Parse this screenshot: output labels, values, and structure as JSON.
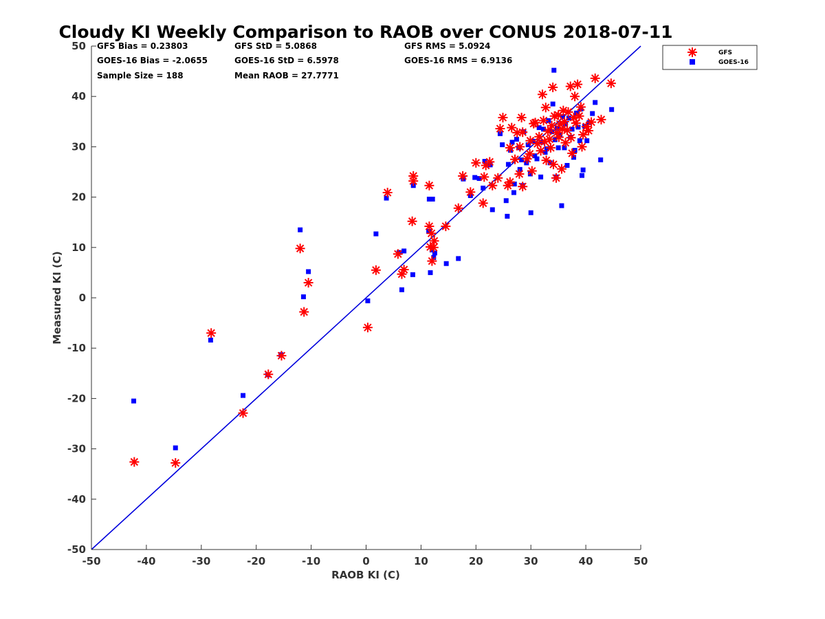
{
  "chart_data": {
    "type": "scatter",
    "title": "Cloudy KI Weekly Comparison to RAOB over CONUS 2018-07-11",
    "xlabel": "RAOB KI (C)",
    "ylabel": "Measured KI (C)",
    "xlim": [
      -50,
      50
    ],
    "ylim": [
      -50,
      50
    ],
    "xticks": [
      "-50",
      "-40",
      "-30",
      "-20",
      "-10",
      "0",
      "10",
      "20",
      "30",
      "40",
      "50"
    ],
    "yticks": [
      "-50",
      "-40",
      "-30",
      "-20",
      "-10",
      "0",
      "10",
      "20",
      "30",
      "40",
      "50"
    ],
    "reference_line": {
      "type": "one-to-one",
      "color": "#0000dd"
    },
    "stats": {
      "gfs_bias": "GFS Bias = 0.23803",
      "gfs_std": "GFS StD = 5.0868",
      "gfs_rms": "GFS RMS = 5.0924",
      "goes_bias": "GOES-16 Bias = -2.0655",
      "goes_std": "GOES-16 StD = 6.5978",
      "goes_rms": "GOES-16 RMS = 6.9136",
      "sample_size": "Sample Size = 188",
      "mean_raob": "Mean RAOB = 27.7771"
    },
    "legend": {
      "position": "top-right outside",
      "entries": [
        "GFS",
        "GOES-16"
      ]
    },
    "series": [
      {
        "name": "GFS",
        "marker": "asterisk",
        "color": "#ff0000",
        "points": [
          [
            -42.2,
            -32.6
          ],
          [
            -34.7,
            -32.8
          ],
          [
            -28.2,
            -7.0
          ],
          [
            -22.4,
            -22.9
          ],
          [
            -17.8,
            -15.2
          ],
          [
            -15.4,
            -11.5
          ],
          [
            -12.0,
            9.8
          ],
          [
            -11.3,
            -2.8
          ],
          [
            -10.5,
            3.0
          ],
          [
            0.3,
            -5.9
          ],
          [
            1.8,
            5.5
          ],
          [
            3.9,
            20.9
          ],
          [
            5.8,
            8.7
          ],
          [
            6.5,
            4.7
          ],
          [
            6.9,
            5.6
          ],
          [
            8.4,
            15.2
          ],
          [
            8.6,
            24.2
          ],
          [
            8.6,
            23.2
          ],
          [
            11.5,
            22.3
          ],
          [
            11.5,
            14.2
          ],
          [
            11.7,
            10.1
          ],
          [
            11.9,
            12.8
          ],
          [
            12.0,
            7.3
          ],
          [
            12.3,
            10.0
          ],
          [
            12.4,
            11.3
          ],
          [
            14.5,
            14.2
          ],
          [
            16.8,
            17.8
          ],
          [
            17.6,
            24.2
          ],
          [
            19.0,
            21.0
          ],
          [
            20.0,
            26.8
          ],
          [
            21.3,
            18.8
          ],
          [
            21.5,
            24.0
          ],
          [
            21.8,
            26.3
          ],
          [
            22.5,
            27.0
          ],
          [
            23.0,
            22.3
          ],
          [
            24.0,
            23.8
          ],
          [
            24.4,
            33.6
          ],
          [
            24.9,
            35.8
          ],
          [
            25.8,
            22.3
          ],
          [
            26.2,
            23.0
          ],
          [
            26.2,
            29.8
          ],
          [
            26.5,
            33.8
          ],
          [
            27.1,
            27.5
          ],
          [
            27.5,
            32.8
          ],
          [
            27.9,
            24.6
          ],
          [
            28.0,
            30.0
          ],
          [
            28.3,
            35.8
          ],
          [
            28.5,
            22.1
          ],
          [
            28.5,
            32.9
          ],
          [
            29.3,
            27.6
          ],
          [
            29.8,
            28.6
          ],
          [
            29.9,
            31.2
          ],
          [
            30.2,
            25.2
          ],
          [
            30.5,
            34.6
          ],
          [
            30.8,
            34.8
          ],
          [
            31.2,
            30.6
          ],
          [
            31.5,
            32.0
          ],
          [
            31.8,
            29.2
          ],
          [
            32.1,
            40.4
          ],
          [
            32.3,
            35.2
          ],
          [
            32.5,
            31.0
          ],
          [
            32.7,
            37.8
          ],
          [
            32.8,
            27.3
          ],
          [
            33.1,
            33.1
          ],
          [
            33.4,
            31.5
          ],
          [
            33.6,
            29.8
          ],
          [
            33.8,
            34.2
          ],
          [
            34.0,
            41.8
          ],
          [
            34.1,
            26.5
          ],
          [
            34.3,
            36.1
          ],
          [
            34.6,
            23.8
          ],
          [
            34.7,
            32.8
          ],
          [
            35.0,
            36.3
          ],
          [
            35.1,
            31.9
          ],
          [
            35.3,
            34.5
          ],
          [
            35.6,
            25.6
          ],
          [
            35.7,
            33.5
          ],
          [
            35.9,
            37.2
          ],
          [
            36.1,
            35.0
          ],
          [
            36.3,
            30.8
          ],
          [
            36.6,
            33.3
          ],
          [
            36.8,
            36.9
          ],
          [
            37.2,
            42.0
          ],
          [
            37.3,
            31.8
          ],
          [
            37.5,
            28.7
          ],
          [
            37.8,
            35.8
          ],
          [
            38.0,
            40.0
          ],
          [
            38.2,
            34.7
          ],
          [
            38.5,
            42.4
          ],
          [
            38.8,
            36.1
          ],
          [
            39.1,
            37.9
          ],
          [
            39.3,
            30.0
          ],
          [
            39.5,
            32.4
          ],
          [
            40.1,
            34.0
          ],
          [
            40.5,
            33.2
          ],
          [
            41.0,
            34.9
          ],
          [
            41.7,
            43.6
          ],
          [
            42.8,
            35.4
          ],
          [
            44.6,
            42.6
          ]
        ]
      },
      {
        "name": "GOES-16",
        "marker": "square",
        "color": "#0000ff",
        "points": [
          [
            -42.3,
            -20.5
          ],
          [
            -34.7,
            -29.8
          ],
          [
            -28.3,
            -8.4
          ],
          [
            -22.4,
            -19.4
          ],
          [
            -17.9,
            -15.3
          ],
          [
            -15.5,
            -11.3
          ],
          [
            -12.0,
            13.5
          ],
          [
            -11.4,
            0.2
          ],
          [
            -10.5,
            5.2
          ],
          [
            0.3,
            -0.6
          ],
          [
            1.8,
            12.7
          ],
          [
            3.7,
            19.8
          ],
          [
            6.0,
            9.0
          ],
          [
            6.5,
            1.6
          ],
          [
            6.9,
            9.3
          ],
          [
            8.5,
            4.6
          ],
          [
            8.6,
            22.3
          ],
          [
            11.4,
            13.2
          ],
          [
            11.5,
            19.6
          ],
          [
            11.7,
            5.0
          ],
          [
            12.0,
            9.5
          ],
          [
            12.1,
            19.6
          ],
          [
            12.3,
            8.0
          ],
          [
            12.5,
            8.9
          ],
          [
            14.6,
            6.8
          ],
          [
            16.8,
            7.8
          ],
          [
            17.7,
            23.6
          ],
          [
            19.0,
            20.3
          ],
          [
            19.8,
            23.9
          ],
          [
            20.6,
            23.7
          ],
          [
            21.3,
            21.8
          ],
          [
            21.6,
            27.1
          ],
          [
            22.6,
            26.4
          ],
          [
            23.0,
            17.5
          ],
          [
            24.4,
            32.6
          ],
          [
            24.8,
            30.4
          ],
          [
            25.5,
            19.3
          ],
          [
            25.7,
            16.2
          ],
          [
            25.9,
            26.5
          ],
          [
            26.3,
            29.3
          ],
          [
            26.6,
            30.9
          ],
          [
            26.9,
            20.9
          ],
          [
            27.0,
            22.6
          ],
          [
            27.4,
            31.5
          ],
          [
            27.8,
            29.8
          ],
          [
            28.0,
            25.5
          ],
          [
            28.3,
            27.4
          ],
          [
            28.5,
            22.3
          ],
          [
            28.7,
            33.0
          ],
          [
            29.2,
            26.8
          ],
          [
            29.5,
            30.4
          ],
          [
            29.9,
            24.6
          ],
          [
            30.0,
            16.9
          ],
          [
            30.4,
            31.1
          ],
          [
            30.7,
            28.2
          ],
          [
            31.1,
            27.6
          ],
          [
            31.5,
            33.8
          ],
          [
            31.8,
            24.0
          ],
          [
            32.0,
            30.9
          ],
          [
            32.3,
            33.5
          ],
          [
            32.6,
            28.9
          ],
          [
            32.9,
            29.6
          ],
          [
            33.2,
            35.2
          ],
          [
            33.5,
            26.8
          ],
          [
            33.8,
            33.0
          ],
          [
            34.0,
            38.5
          ],
          [
            34.2,
            45.2
          ],
          [
            34.4,
            31.4
          ],
          [
            34.6,
            24.0
          ],
          [
            34.8,
            33.7
          ],
          [
            35.0,
            29.8
          ],
          [
            35.3,
            32.4
          ],
          [
            35.6,
            18.3
          ],
          [
            35.8,
            36.0
          ],
          [
            36.1,
            29.8
          ],
          [
            36.3,
            34.5
          ],
          [
            36.6,
            26.3
          ],
          [
            36.9,
            35.7
          ],
          [
            37.2,
            31.9
          ],
          [
            37.5,
            33.5
          ],
          [
            37.8,
            27.9
          ],
          [
            38.0,
            29.3
          ],
          [
            38.3,
            36.7
          ],
          [
            38.6,
            33.9
          ],
          [
            38.9,
            31.2
          ],
          [
            39.1,
            37.5
          ],
          [
            39.3,
            24.3
          ],
          [
            39.5,
            25.4
          ],
          [
            39.8,
            34.1
          ],
          [
            40.2,
            31.2
          ],
          [
            40.6,
            34.8
          ],
          [
            41.2,
            36.6
          ],
          [
            41.7,
            38.8
          ],
          [
            42.7,
            27.4
          ],
          [
            44.7,
            37.4
          ]
        ]
      }
    ]
  }
}
